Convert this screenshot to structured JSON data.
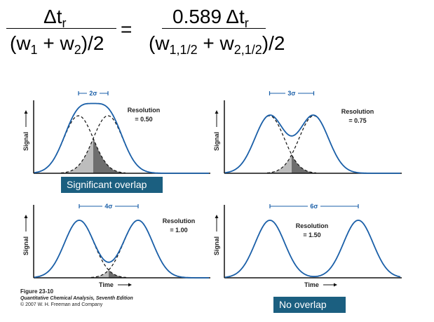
{
  "equation": {
    "left_numerator": "Δt",
    "left_numerator_sub": "r",
    "left_denominator": [
      "(w",
      "1",
      " + w",
      "2",
      ")/2"
    ],
    "equals": "=",
    "right_numerator": "0.589 Δt",
    "right_numerator_sub": "r",
    "right_denominator": [
      "(w",
      "1,1/2",
      " + w",
      "2,1/2",
      ")/2"
    ]
  },
  "panels": [
    {
      "resolution_label": "Resolution",
      "resolution_value": "= 0.50",
      "resolution": 0.5,
      "separation_label": "2σ",
      "separation_sigma": 2,
      "y_label": "Signal",
      "x_label": ""
    },
    {
      "resolution_label": "Resolution",
      "resolution_value": "= 0.75",
      "resolution": 0.75,
      "separation_label": "3σ",
      "separation_sigma": 3,
      "y_label": "Signal",
      "x_label": ""
    },
    {
      "resolution_label": "Resolution",
      "resolution_value": "= 1.00",
      "resolution": 1.0,
      "separation_label": "4σ",
      "separation_sigma": 4,
      "y_label": "Signal",
      "x_label": "Time"
    },
    {
      "resolution_label": "Resolution",
      "resolution_value": "= 1.50",
      "resolution": 1.5,
      "separation_label": "6σ",
      "separation_sigma": 6,
      "y_label": "Signal",
      "x_label": "Time"
    }
  ],
  "callouts": {
    "significant_overlap": "Significant overlap",
    "no_overlap": "No overlap"
  },
  "caption": {
    "figure": "Figure 23-10",
    "book": "Quantitative Chemical Analysis, Seventh Edition",
    "copyright": "© 2007 W. H. Freeman and Company"
  },
  "colors": {
    "curve": "#1a5fa8",
    "callout": "#1b5f80",
    "shade_light": "#bdbdbd",
    "shade_dark": "#6e6e6e"
  }
}
